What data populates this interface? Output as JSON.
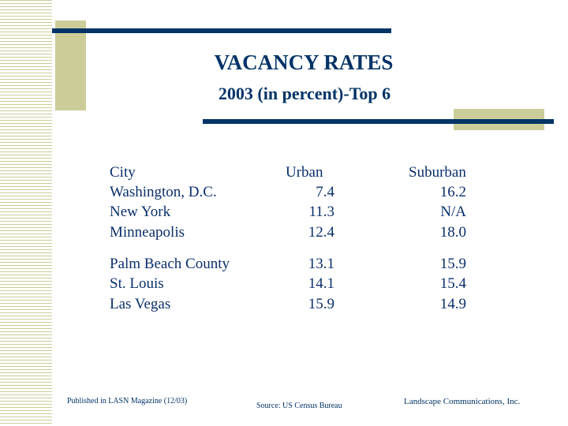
{
  "title": "VACANCY RATES",
  "subtitle": "2003 (in percent)-Top 6",
  "table": {
    "headers": [
      "City",
      "Urban",
      "Suburban"
    ],
    "rows": [
      [
        "Washington, D.C.",
        "7.4",
        "16.2"
      ],
      [
        "New York",
        "11.3",
        "N/A"
      ],
      [
        "Minneapolis",
        "12.4",
        "18.0"
      ],
      [
        "Palm Beach County",
        "13.1",
        "15.9"
      ],
      [
        "St. Louis",
        "14.1",
        "15.4"
      ],
      [
        "Las Vegas",
        "15.9",
        "14.9"
      ]
    ]
  },
  "footer": {
    "published": "Published in LASN Magazine (12/03)",
    "source": "Source: US Census Bureau",
    "company": "Landscape Communications, Inc."
  },
  "colors": {
    "navy": "#003366",
    "khaki": "#cccc99"
  }
}
